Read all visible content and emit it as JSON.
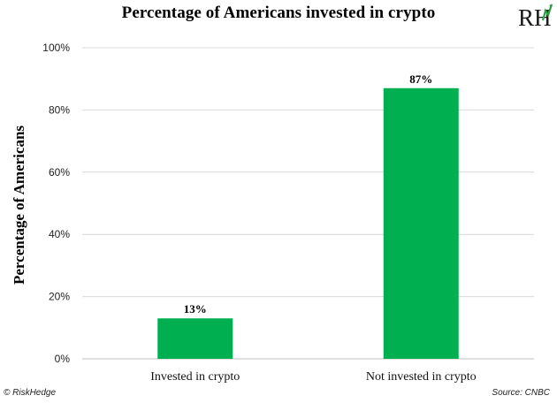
{
  "chart_data": {
    "type": "bar",
    "title": "Percentage of Americans invested in crypto",
    "ylabel": "Percentage of Americans",
    "xlabel": "",
    "categories": [
      "Invested in crypto",
      "Not invested in crypto"
    ],
    "values": [
      13,
      87
    ],
    "data_labels": [
      "13%",
      "87%"
    ],
    "ylim": [
      0,
      100
    ],
    "yticks": [
      0,
      20,
      40,
      60,
      80,
      100
    ],
    "ytick_labels": [
      "0%",
      "20%",
      "40%",
      "60%",
      "80%",
      "100%"
    ],
    "grid": true,
    "bar_color": "#00b050",
    "grid_color": "#d9d9d9"
  },
  "branding": {
    "logo_text": "RH",
    "logo_color": "#2e7d32",
    "copyright": "© RiskHedge",
    "source": "Source: CNBC"
  }
}
